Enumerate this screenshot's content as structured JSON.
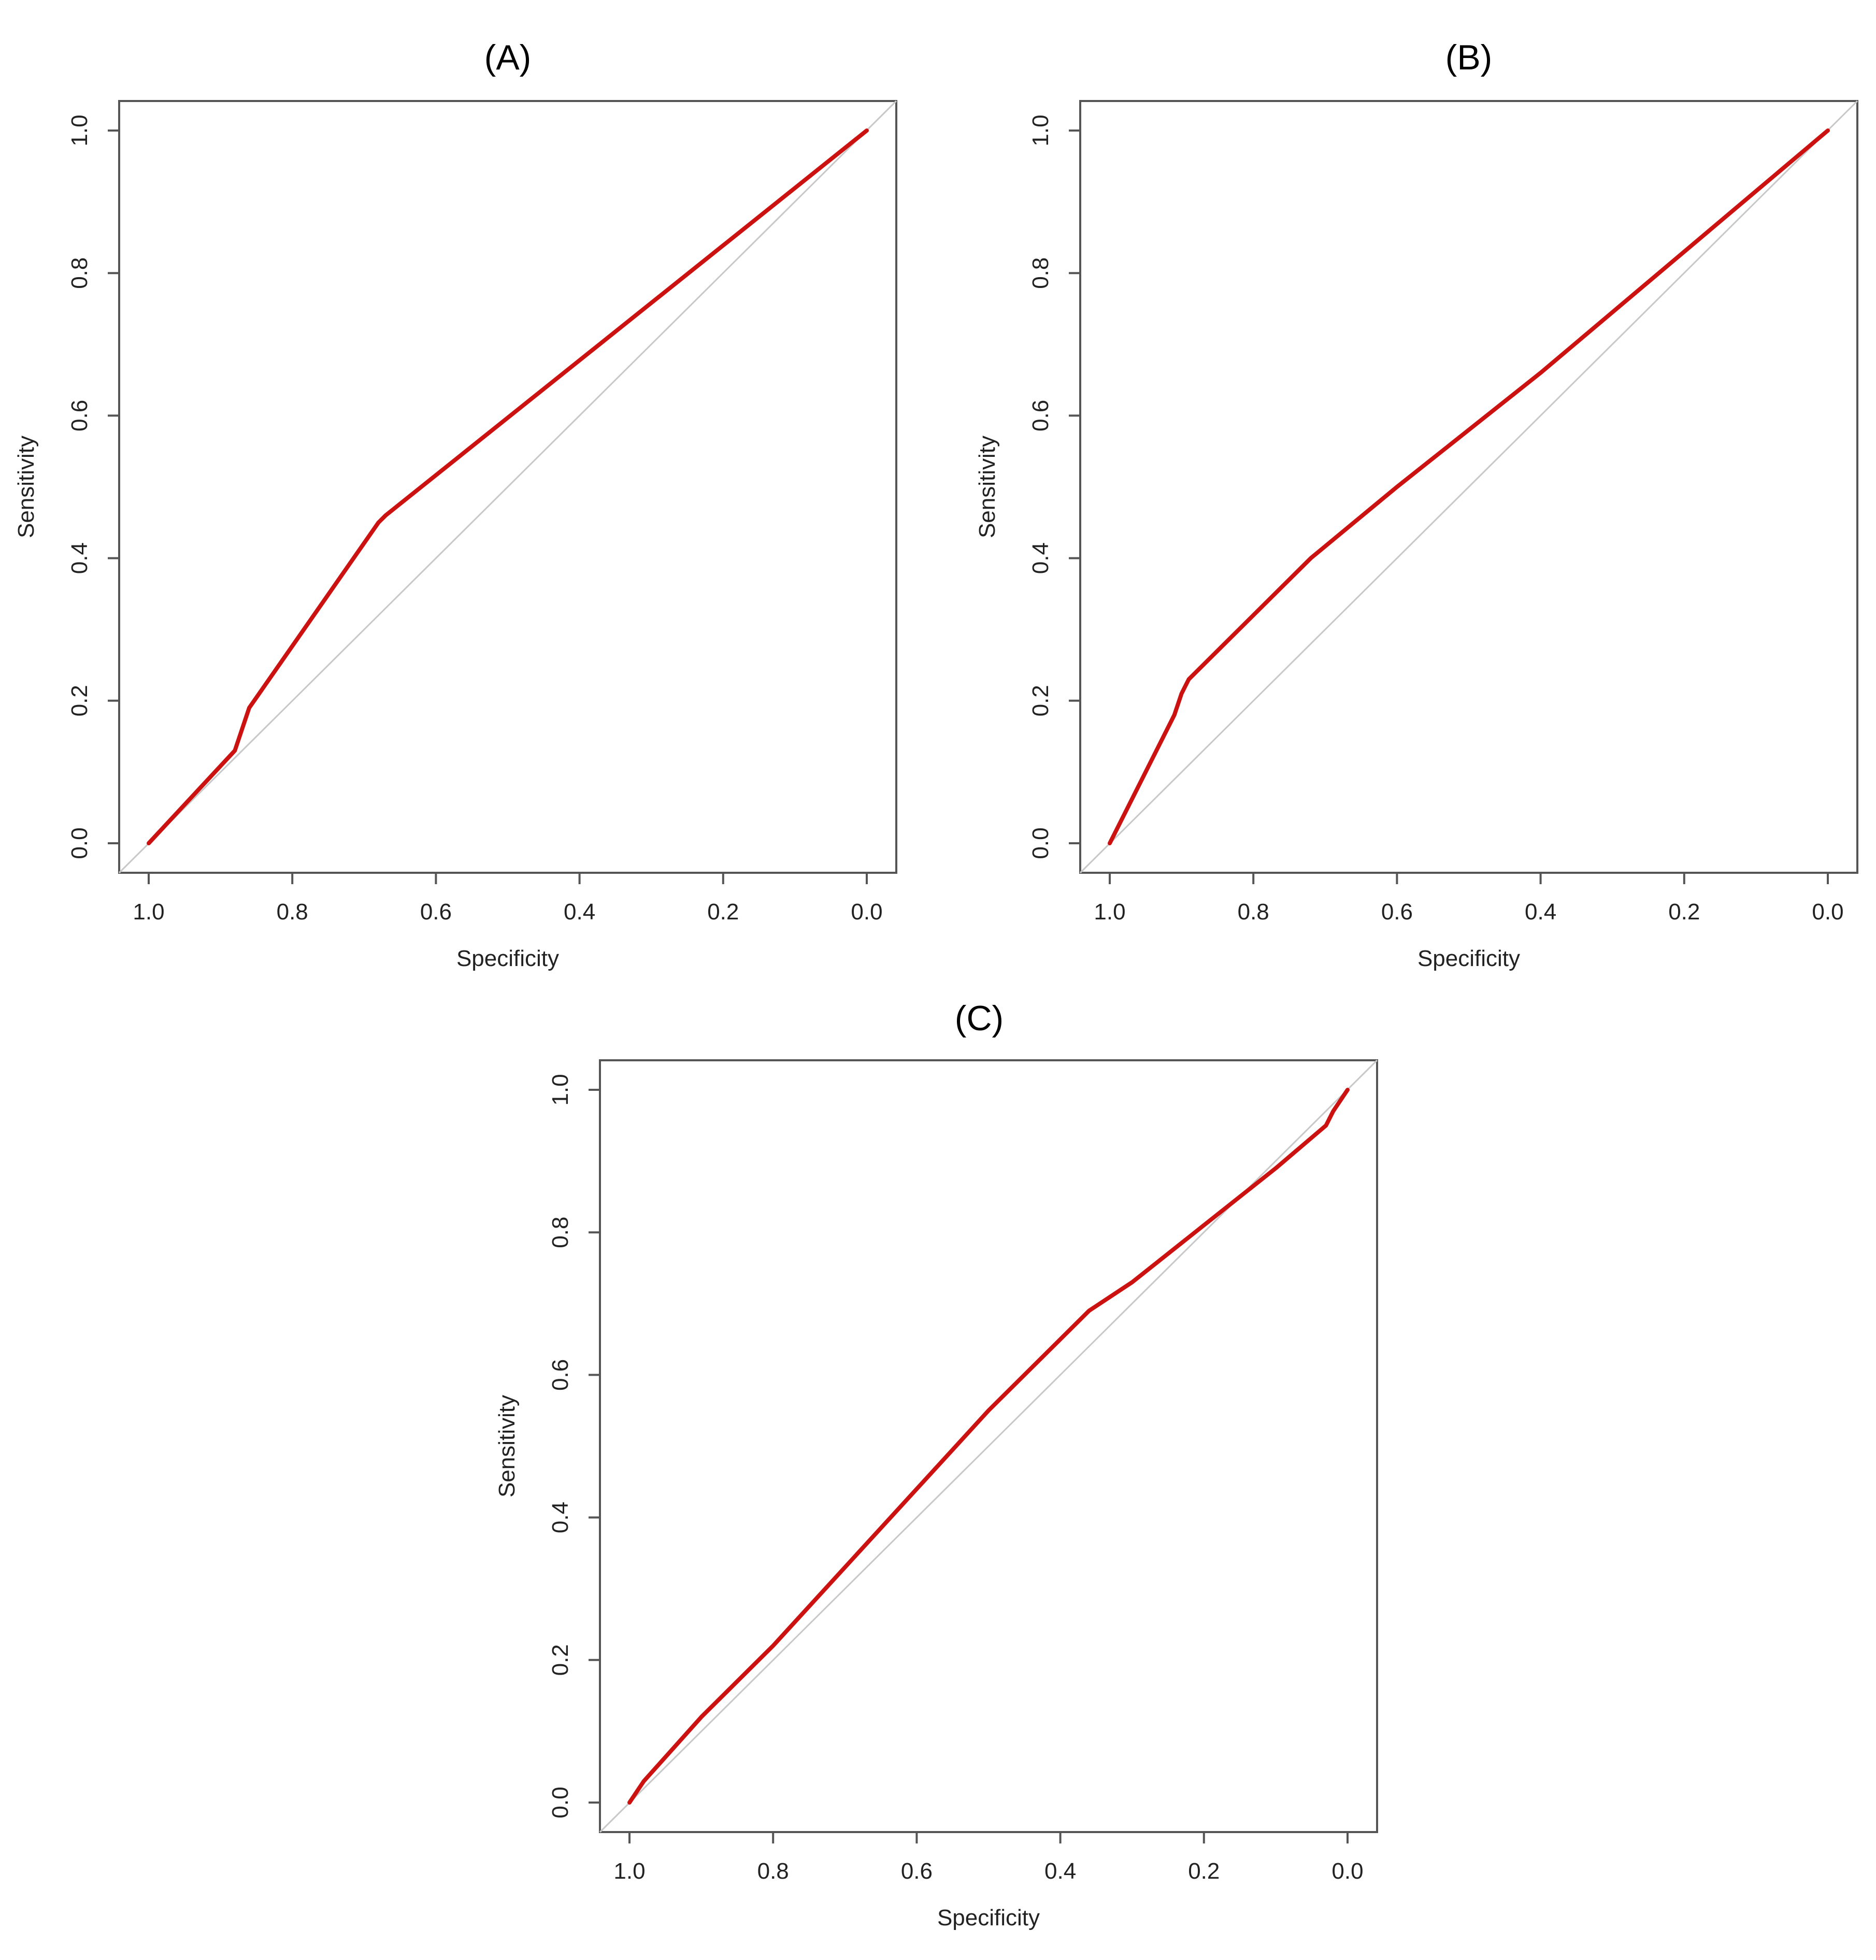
{
  "chart_data": [
    {
      "type": "line",
      "title": "(A)",
      "xlabel": "Specificity",
      "ylabel": "Sensitivity",
      "xlim": [
        1.0,
        0.0
      ],
      "ylim": [
        0.0,
        1.0
      ],
      "x_reversed": true,
      "xticks": [
        "1.0",
        "0.8",
        "0.6",
        "0.4",
        "0.2",
        "0.0"
      ],
      "yticks": [
        "0.0",
        "0.2",
        "0.4",
        "0.6",
        "0.8",
        "1.0"
      ],
      "grid": false,
      "reference_line": true,
      "line_color": "#cc1111",
      "x": [
        1.0,
        0.88,
        0.86,
        0.68,
        0.67,
        0.0
      ],
      "y": [
        0.0,
        0.13,
        0.19,
        0.45,
        0.46,
        1.0
      ]
    },
    {
      "type": "line",
      "title": "(B)",
      "xlabel": "Specificity",
      "ylabel": "Sensitivity",
      "xlim": [
        1.0,
        0.0
      ],
      "ylim": [
        0.0,
        1.0
      ],
      "x_reversed": true,
      "xticks": [
        "1.0",
        "0.8",
        "0.6",
        "0.4",
        "0.2",
        "0.0"
      ],
      "yticks": [
        "0.0",
        "0.2",
        "0.4",
        "0.6",
        "0.8",
        "1.0"
      ],
      "grid": false,
      "reference_line": true,
      "line_color": "#cc1111",
      "x": [
        1.0,
        0.91,
        0.9,
        0.89,
        0.85,
        0.8,
        0.72,
        0.6,
        0.4,
        0.2,
        0.0
      ],
      "y": [
        0.0,
        0.18,
        0.21,
        0.23,
        0.27,
        0.32,
        0.4,
        0.5,
        0.66,
        0.83,
        1.0
      ]
    },
    {
      "type": "line",
      "title": "(C)",
      "xlabel": "Specificity",
      "ylabel": "Sensitivity",
      "xlim": [
        1.0,
        0.0
      ],
      "ylim": [
        0.0,
        1.0
      ],
      "x_reversed": true,
      "xticks": [
        "1.0",
        "0.8",
        "0.6",
        "0.4",
        "0.2",
        "0.0"
      ],
      "yticks": [
        "0.0",
        "0.2",
        "0.4",
        "0.6",
        "0.8",
        "1.0"
      ],
      "grid": false,
      "reference_line": true,
      "line_color": "#cc1111",
      "x": [
        1.0,
        0.98,
        0.9,
        0.8,
        0.7,
        0.6,
        0.5,
        0.4,
        0.36,
        0.3,
        0.2,
        0.1,
        0.03,
        0.02,
        0.0
      ],
      "y": [
        0.0,
        0.03,
        0.12,
        0.22,
        0.33,
        0.44,
        0.55,
        0.65,
        0.69,
        0.73,
        0.81,
        0.89,
        0.95,
        0.97,
        1.0
      ]
    }
  ]
}
